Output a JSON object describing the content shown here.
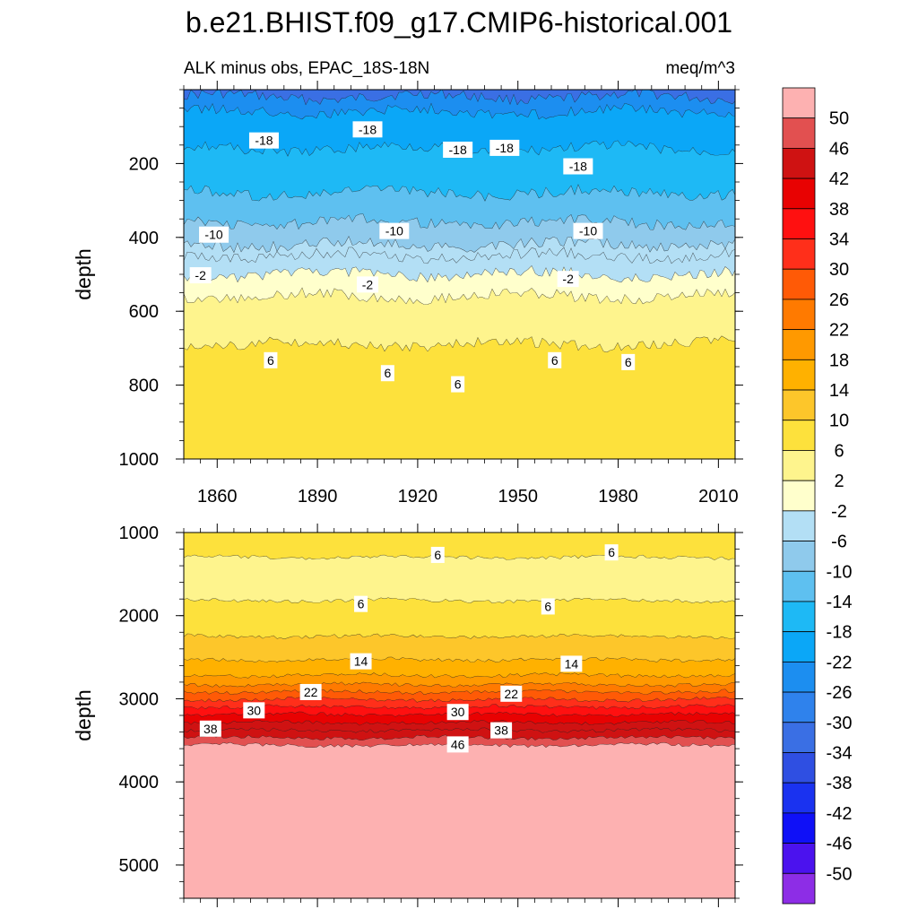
{
  "title": "b.e21.BHIST.f09_g17.CMIP6-historical.001",
  "subtitle_left": "ALK minus obs, EPAC_18S-18N",
  "subtitle_right": "meq/m^3",
  "chart_data": {
    "type": "heatmap",
    "description_note": "Filled contour (Hovmoller) of alkalinity model minus observations vs. year and depth",
    "x": {
      "label": "",
      "range": [
        1850,
        2015
      ],
      "ticks": [
        1860,
        1890,
        1920,
        1950,
        1980,
        2010
      ]
    },
    "panels": [
      {
        "name": "upper",
        "ylabel": "depth",
        "ylim": [
          0,
          1000
        ],
        "yticks": [
          200,
          400,
          600,
          800,
          1000
        ],
        "bands": [
          {
            "top": 0,
            "bottom": 20,
            "value": -34
          },
          {
            "top": 20,
            "bottom": 60,
            "value": -26
          },
          {
            "top": 60,
            "bottom": 160,
            "value": -22
          },
          {
            "top": 160,
            "bottom": 280,
            "value": -18
          },
          {
            "top": 280,
            "bottom": 360,
            "value": -14
          },
          {
            "top": 360,
            "bottom": 420,
            "value": -10
          },
          {
            "top": 420,
            "bottom": 450,
            "value": -6
          },
          {
            "top": 450,
            "bottom": 500,
            "value": -4
          },
          {
            "top": 500,
            "bottom": 560,
            "value": 0
          },
          {
            "top": 560,
            "bottom": 690,
            "value": 4
          },
          {
            "top": 690,
            "bottom": 1000,
            "value": 8
          }
        ],
        "contour_labels": [
          {
            "text": "-18",
            "year": 1874,
            "depth": 140
          },
          {
            "text": "-18",
            "year": 1905,
            "depth": 110
          },
          {
            "text": "-18",
            "year": 1932,
            "depth": 165
          },
          {
            "text": "-18",
            "year": 1946,
            "depth": 160
          },
          {
            "text": "-18",
            "year": 1968,
            "depth": 210
          },
          {
            "text": "-10",
            "year": 1859,
            "depth": 395
          },
          {
            "text": "-10",
            "year": 1913,
            "depth": 385
          },
          {
            "text": "-10",
            "year": 1971,
            "depth": 385
          },
          {
            "text": "-2",
            "year": 1855,
            "depth": 505
          },
          {
            "text": "-2",
            "year": 1905,
            "depth": 530
          },
          {
            "text": "-2",
            "year": 1965,
            "depth": 515
          },
          {
            "text": "6",
            "year": 1876,
            "depth": 735
          },
          {
            "text": "6",
            "year": 1911,
            "depth": 770
          },
          {
            "text": "6",
            "year": 1932,
            "depth": 800
          },
          {
            "text": "6",
            "year": 1961,
            "depth": 735
          },
          {
            "text": "6",
            "year": 1983,
            "depth": 740
          }
        ]
      },
      {
        "name": "lower",
        "ylabel": "depth",
        "ylim": [
          1000,
          5400
        ],
        "yticks": [
          1000,
          2000,
          3000,
          4000,
          5000
        ],
        "bands": [
          {
            "top": 1000,
            "bottom": 1300,
            "value": 8
          },
          {
            "top": 1300,
            "bottom": 1820,
            "value": 4
          },
          {
            "top": 1820,
            "bottom": 2250,
            "value": 8
          },
          {
            "top": 2250,
            "bottom": 2530,
            "value": 12
          },
          {
            "top": 2530,
            "bottom": 2720,
            "value": 16
          },
          {
            "top": 2720,
            "bottom": 2830,
            "value": 20
          },
          {
            "top": 2830,
            "bottom": 2920,
            "value": 24
          },
          {
            "top": 2920,
            "bottom": 3010,
            "value": 28
          },
          {
            "top": 3010,
            "bottom": 3100,
            "value": 32
          },
          {
            "top": 3100,
            "bottom": 3190,
            "value": 36
          },
          {
            "top": 3190,
            "bottom": 3290,
            "value": 40
          },
          {
            "top": 3290,
            "bottom": 3380,
            "value": 44
          },
          {
            "top": 3380,
            "bottom": 3470,
            "value": 44
          },
          {
            "top": 3470,
            "bottom": 3560,
            "value": 48
          },
          {
            "top": 3560,
            "bottom": 5400,
            "value": 52
          }
        ],
        "contour_labels": [
          {
            "text": "6",
            "year": 1926,
            "depth": 1280
          },
          {
            "text": "6",
            "year": 1978,
            "depth": 1250
          },
          {
            "text": "6",
            "year": 1903,
            "depth": 1870
          },
          {
            "text": "6",
            "year": 1959,
            "depth": 1900
          },
          {
            "text": "14",
            "year": 1903,
            "depth": 2560
          },
          {
            "text": "14",
            "year": 1966,
            "depth": 2590
          },
          {
            "text": "22",
            "year": 1888,
            "depth": 2930
          },
          {
            "text": "22",
            "year": 1948,
            "depth": 2950
          },
          {
            "text": "30",
            "year": 1871,
            "depth": 3150
          },
          {
            "text": "30",
            "year": 1932,
            "depth": 3170
          },
          {
            "text": "38",
            "year": 1858,
            "depth": 3370
          },
          {
            "text": "38",
            "year": 1945,
            "depth": 3390
          },
          {
            "text": "46",
            "year": 1932,
            "depth": 3560
          }
        ]
      }
    ],
    "colorbar": {
      "labels": [
        "50",
        "46",
        "42",
        "38",
        "34",
        "30",
        "26",
        "22",
        "18",
        "14",
        "10",
        "6",
        "2",
        "-2",
        "-6",
        "-10",
        "-14",
        "-18",
        "-22",
        "-26",
        "-30",
        "-34",
        "-38",
        "-42",
        "-46",
        "-50"
      ],
      "boundaries": [
        50,
        46,
        42,
        38,
        34,
        30,
        26,
        22,
        18,
        14,
        10,
        6,
        2,
        -2,
        -6,
        -10,
        -14,
        -18,
        -22,
        -26,
        -30,
        -34,
        -38,
        -42,
        -46,
        -50
      ],
      "colors": [
        "#fdb1b1",
        "#e25050",
        "#cf1212",
        "#e80202",
        "#ff1010",
        "#ff2f1a",
        "#ff5a06",
        "#ff7a00",
        "#ff9900",
        "#ffb100",
        "#fdc62a",
        "#fde13c",
        "#fef48d",
        "#ffffcc",
        "#b3dff5",
        "#8fcaec",
        "#5ec0f0",
        "#1eb9f5",
        "#0ba7f7",
        "#1c8ef0",
        "#2f82ec",
        "#3a6fe4",
        "#2f4fe2",
        "#1a32f0",
        "#0f10f7",
        "#4b12ee",
        "#8d2de6"
      ]
    }
  }
}
